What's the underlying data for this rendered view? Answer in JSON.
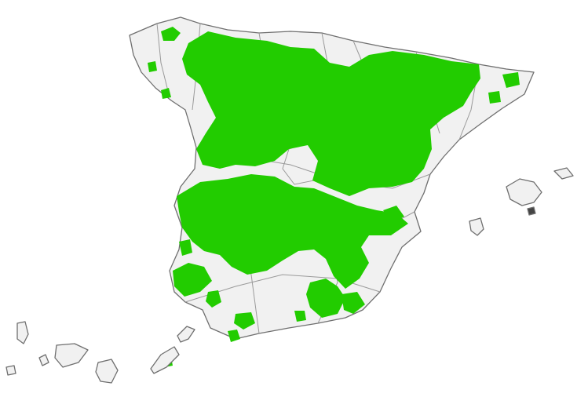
{
  "map": {
    "regions": [
      "peninsula",
      "balearic-islands",
      "canary-islands"
    ],
    "colors": {
      "land": "#f1f1f1",
      "outline": "#6f6f6f",
      "internal_border": "#9a9a9a",
      "highlight": "#22cc00",
      "background": "#ffffff"
    },
    "legend": null,
    "title": null
  }
}
